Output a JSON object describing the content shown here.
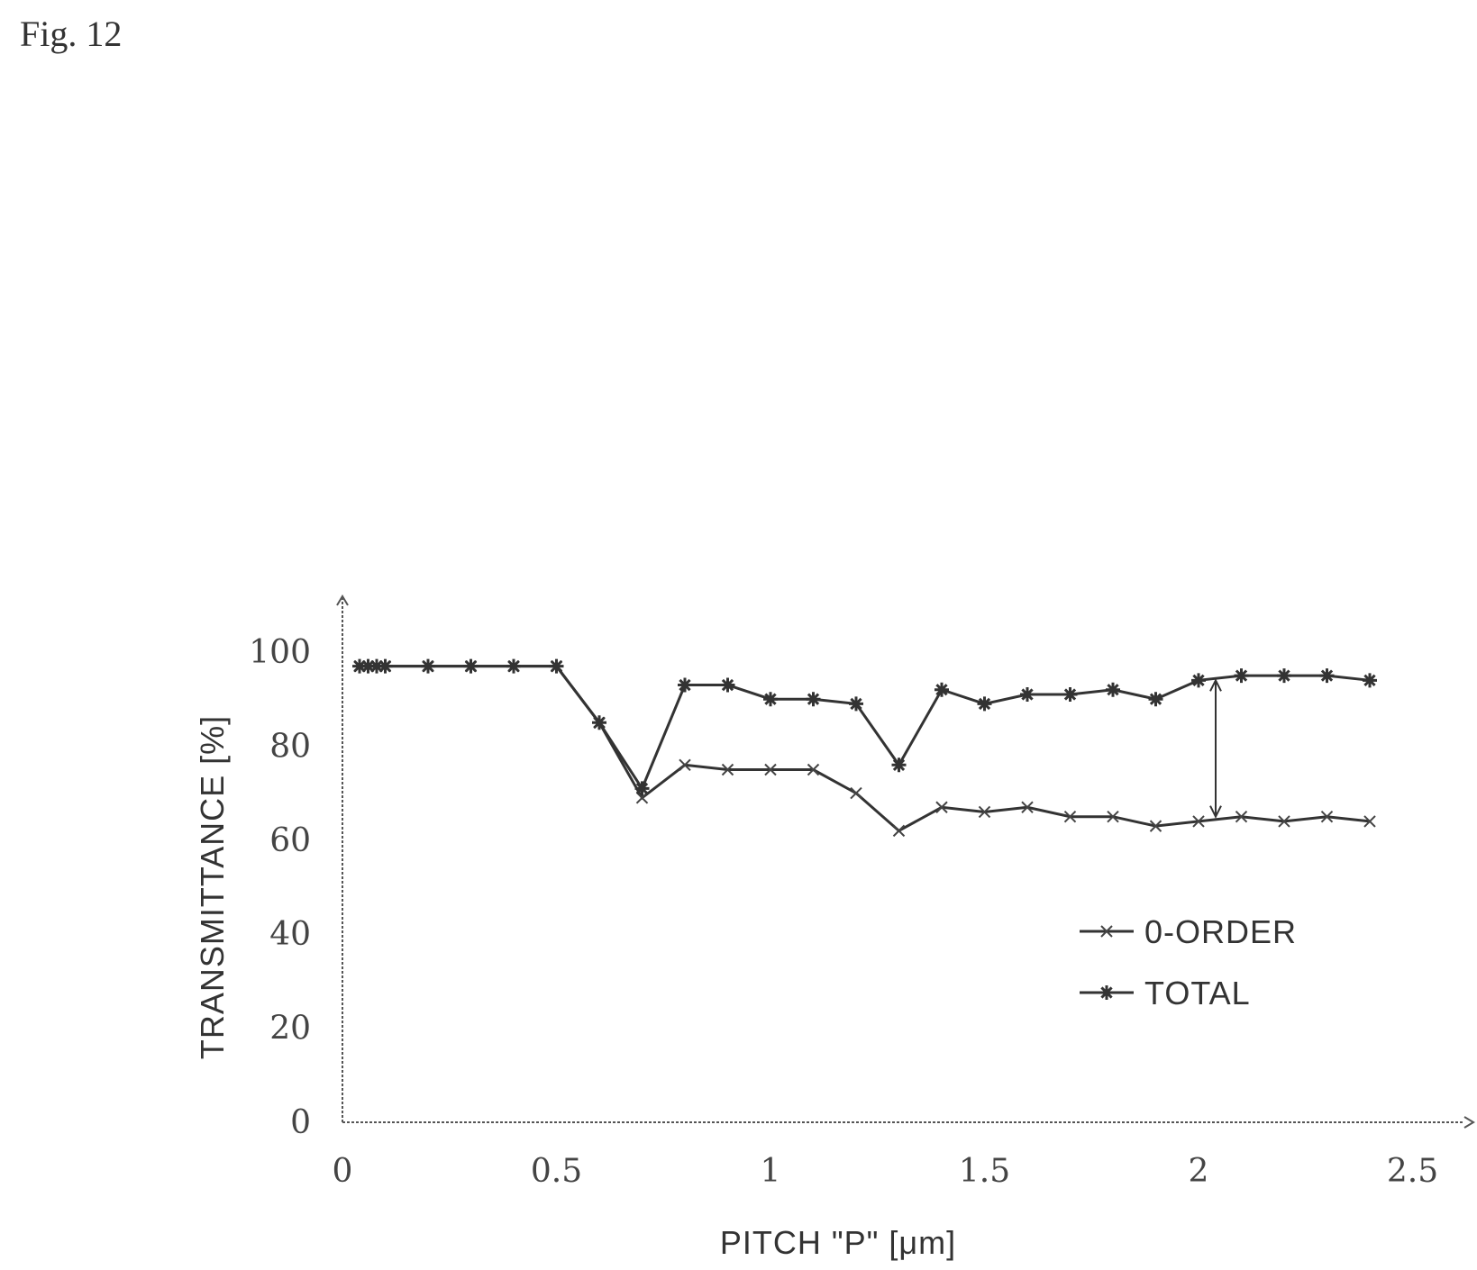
{
  "figure_label": "Fig. 12",
  "chart_data": {
    "type": "line",
    "xlabel": "PITCH \"P\" [μm]",
    "ylabel": "TRANSMITTANCE [%]",
    "xlim": [
      0,
      2.6
    ],
    "ylim": [
      0,
      110
    ],
    "xticks": [
      0,
      0.5,
      1,
      1.5,
      2,
      2.5
    ],
    "xtick_labels": [
      "0",
      "0.5",
      "1",
      "1.5",
      "2",
      "2.5"
    ],
    "yticks": [
      0,
      20,
      40,
      60,
      80,
      100
    ],
    "ytick_labels": [
      "0",
      "20",
      "40",
      "60",
      "80",
      "100"
    ],
    "grid": false,
    "legend_position": "center-right",
    "series": [
      {
        "name": "0-ORDER",
        "marker": "x",
        "x": [
          0.04,
          0.06,
          0.08,
          0.1,
          0.2,
          0.3,
          0.4,
          0.5,
          0.6,
          0.7,
          0.8,
          0.9,
          1.0,
          1.1,
          1.2,
          1.3,
          1.4,
          1.5,
          1.6,
          1.7,
          1.8,
          1.9,
          2.0,
          2.1,
          2.2,
          2.3,
          2.4
        ],
        "values": [
          97,
          97,
          97,
          97,
          97,
          97,
          97,
          97,
          85,
          69,
          76,
          75,
          75,
          75,
          70,
          62,
          67,
          66,
          67,
          65,
          65,
          63,
          64,
          65,
          64,
          65,
          64
        ]
      },
      {
        "name": "TOTAL",
        "marker": "star",
        "x": [
          0.04,
          0.06,
          0.08,
          0.1,
          0.2,
          0.3,
          0.4,
          0.5,
          0.6,
          0.7,
          0.8,
          0.9,
          1.0,
          1.1,
          1.2,
          1.3,
          1.4,
          1.5,
          1.6,
          1.7,
          1.8,
          1.9,
          2.0,
          2.1,
          2.2,
          2.3,
          2.4
        ],
        "values": [
          97,
          97,
          97,
          97,
          97,
          97,
          97,
          97,
          85,
          71,
          93,
          93,
          90,
          90,
          89,
          76,
          92,
          89,
          91,
          91,
          92,
          90,
          94,
          95,
          95,
          95,
          94
        ]
      }
    ],
    "annotation": {
      "type": "double-arrow",
      "x": 2.04,
      "from": 94,
      "to": 65
    }
  }
}
